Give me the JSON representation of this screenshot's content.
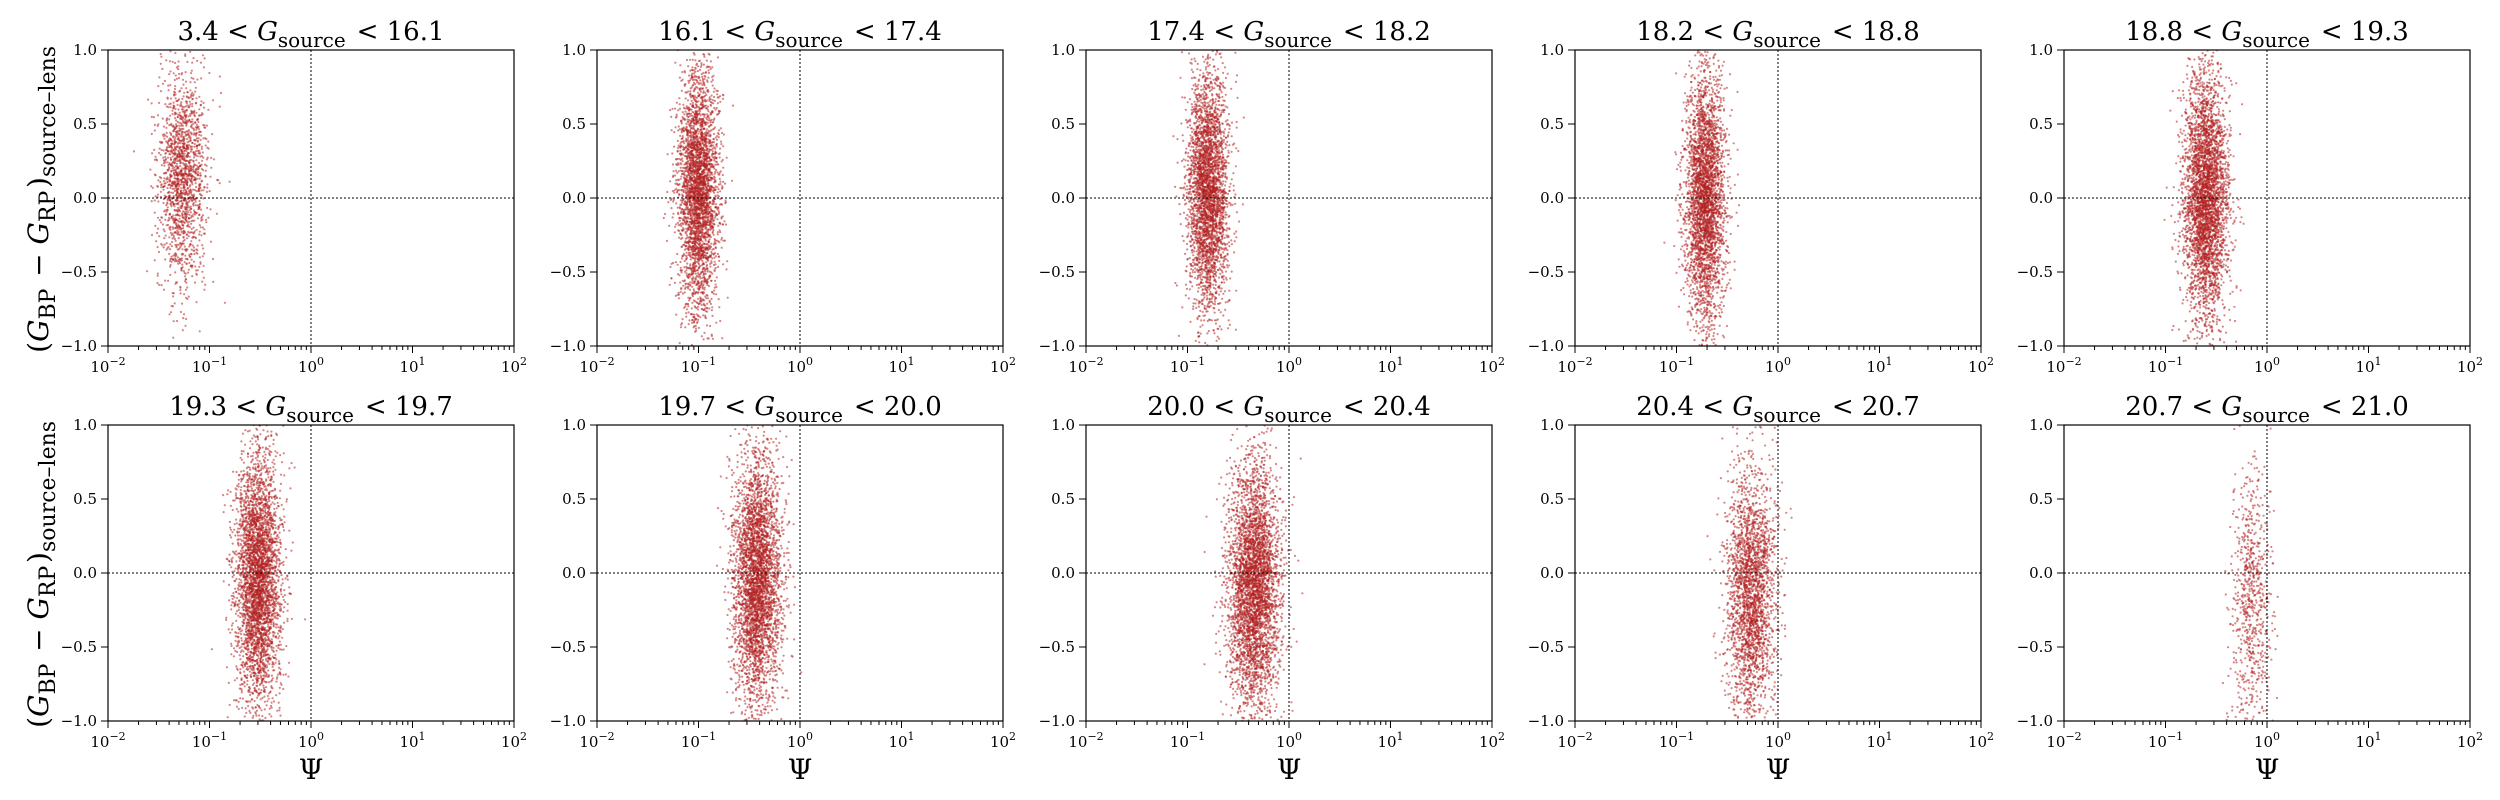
{
  "figure": {
    "ylabel": "(G_BP − G_RP)_source–lens",
    "xlabel": "Ψ"
  },
  "chart_data": [
    {
      "type": "scatter",
      "title": "3.4 < G_source < 16.1",
      "xlabel": "",
      "ylabel": "(G_BP − G_RP)_source–lens",
      "xscale": "log",
      "xlim": [
        0.01,
        100
      ],
      "ylim": [
        -1,
        1
      ],
      "xticks": [
        "10^-2",
        "10^-1",
        "10^0",
        "10^1",
        "10^2"
      ],
      "yticks": [
        "−1.0",
        "−0.5",
        "0.0",
        "0.5",
        "1.0"
      ],
      "reference_lines": {
        "x": 1,
        "y": 0
      },
      "marker_color": "#b22222",
      "series": [
        {
          "x_center": 0.055,
          "x_log_spread": 0.12,
          "y_center": 0.15,
          "y_spread": 0.35,
          "n_points": 1600
        }
      ]
    },
    {
      "type": "scatter",
      "title": "16.1 < G_source < 17.4",
      "xlabel": "",
      "ylabel": "",
      "xscale": "log",
      "xlim": [
        0.01,
        100
      ],
      "ylim": [
        -1,
        1
      ],
      "xticks": [
        "10^-2",
        "10^-1",
        "10^0",
        "10^1",
        "10^2"
      ],
      "yticks": [
        "−1.0",
        "−0.5",
        "0.0",
        "0.5",
        "1.0"
      ],
      "reference_lines": {
        "x": 1,
        "y": 0
      },
      "marker_color": "#b22222",
      "series": [
        {
          "x_center": 0.1,
          "x_log_spread": 0.1,
          "y_center": 0.05,
          "y_spread": 0.4,
          "n_points": 3200
        }
      ]
    },
    {
      "type": "scatter",
      "title": "17.4 < G_source < 18.2",
      "xlabel": "",
      "ylabel": "",
      "xscale": "log",
      "xlim": [
        0.01,
        100
      ],
      "ylim": [
        -1,
        1
      ],
      "xticks": [
        "10^-2",
        "10^-1",
        "10^0",
        "10^1",
        "10^2"
      ],
      "yticks": [
        "−1.0",
        "−0.5",
        "0.0",
        "0.5",
        "1.0"
      ],
      "reference_lines": {
        "x": 1,
        "y": 0
      },
      "marker_color": "#b22222",
      "series": [
        {
          "x_center": 0.16,
          "x_log_spread": 0.1,
          "y_center": 0.05,
          "y_spread": 0.4,
          "n_points": 3200
        }
      ]
    },
    {
      "type": "scatter",
      "title": "18.2 < G_source < 18.8",
      "xlabel": "",
      "ylabel": "",
      "xscale": "log",
      "xlim": [
        0.01,
        100
      ],
      "ylim": [
        -1,
        1
      ],
      "xticks": [
        "10^-2",
        "10^-1",
        "10^0",
        "10^1",
        "10^2"
      ],
      "yticks": [
        "−1.0",
        "−0.5",
        "0.0",
        "0.5",
        "1.0"
      ],
      "reference_lines": {
        "x": 1,
        "y": 0
      },
      "marker_color": "#b22222",
      "series": [
        {
          "x_center": 0.19,
          "x_log_spread": 0.1,
          "y_center": 0.0,
          "y_spread": 0.42,
          "n_points": 3200
        }
      ]
    },
    {
      "type": "scatter",
      "title": "18.8 < G_source < 19.3",
      "xlabel": "",
      "ylabel": "",
      "xscale": "log",
      "xlim": [
        0.01,
        100
      ],
      "ylim": [
        -1,
        1
      ],
      "xticks": [
        "10^-2",
        "10^-1",
        "10^0",
        "10^1",
        "10^2"
      ],
      "yticks": [
        "−1.0",
        "−0.5",
        "0.0",
        "0.5",
        "1.0"
      ],
      "reference_lines": {
        "x": 1,
        "y": 0
      },
      "marker_color": "#b22222",
      "series": [
        {
          "x_center": 0.25,
          "x_log_spread": 0.11,
          "y_center": 0.0,
          "y_spread": 0.42,
          "n_points": 3600
        }
      ]
    },
    {
      "type": "scatter",
      "title": "19.3 < G_source < 19.7",
      "xlabel": "Ψ",
      "ylabel": "(G_BP − G_RP)_source–lens",
      "xscale": "log",
      "xlim": [
        0.01,
        100
      ],
      "ylim": [
        -1,
        1
      ],
      "xticks": [
        "10^-2",
        "10^-1",
        "10^0",
        "10^1",
        "10^2"
      ],
      "yticks": [
        "−1.0",
        "−0.5",
        "0.0",
        "0.5",
        "1.0"
      ],
      "reference_lines": {
        "x": 1,
        "y": 0
      },
      "marker_color": "#b22222",
      "series": [
        {
          "x_center": 0.3,
          "x_log_spread": 0.11,
          "y_center": -0.05,
          "y_spread": 0.42,
          "n_points": 3600
        }
      ]
    },
    {
      "type": "scatter",
      "title": "19.7 < G_source < 20.0",
      "xlabel": "Ψ",
      "ylabel": "",
      "xscale": "log",
      "xlim": [
        0.01,
        100
      ],
      "ylim": [
        -1,
        1
      ],
      "xticks": [
        "10^-2",
        "10^-1",
        "10^0",
        "10^1",
        "10^2"
      ],
      "yticks": [
        "−1.0",
        "−0.5",
        "0.0",
        "0.5",
        "1.0"
      ],
      "reference_lines": {
        "x": 1,
        "y": 0
      },
      "marker_color": "#b22222",
      "series": [
        {
          "x_center": 0.38,
          "x_log_spread": 0.12,
          "y_center": -0.05,
          "y_spread": 0.42,
          "n_points": 3600
        }
      ]
    },
    {
      "type": "scatter",
      "title": "20.0 < G_source < 20.4",
      "xlabel": "Ψ",
      "ylabel": "",
      "xscale": "log",
      "xlim": [
        0.01,
        100
      ],
      "ylim": [
        -1,
        1
      ],
      "xticks": [
        "10^-2",
        "10^-1",
        "10^0",
        "10^1",
        "10^2"
      ],
      "yticks": [
        "−1.0",
        "−0.5",
        "0.0",
        "0.5",
        "1.0"
      ],
      "reference_lines": {
        "x": 1,
        "y": 0
      },
      "marker_color": "#b22222",
      "series": [
        {
          "x_center": 0.45,
          "x_log_spread": 0.13,
          "y_center": -0.1,
          "y_spread": 0.42,
          "n_points": 3800
        }
      ]
    },
    {
      "type": "scatter",
      "title": "20.4 < G_source < 20.7",
      "xlabel": "Ψ",
      "ylabel": "",
      "xscale": "log",
      "xlim": [
        0.01,
        100
      ],
      "ylim": [
        -1,
        1
      ],
      "xticks": [
        "10^-2",
        "10^-1",
        "10^0",
        "10^1",
        "10^2"
      ],
      "yticks": [
        "−1.0",
        "−0.5",
        "0.0",
        "0.5",
        "1.0"
      ],
      "reference_lines": {
        "x": 1,
        "y": 0
      },
      "marker_color": "#b22222",
      "series": [
        {
          "x_center": 0.55,
          "x_log_spread": 0.12,
          "y_center": -0.15,
          "y_spread": 0.42,
          "n_points": 2400
        }
      ]
    },
    {
      "type": "scatter",
      "title": "20.7 < G_source < 21.0",
      "xlabel": "Ψ",
      "ylabel": "",
      "xscale": "log",
      "xlim": [
        0.01,
        100
      ],
      "ylim": [
        -1,
        1
      ],
      "xticks": [
        "10^-2",
        "10^-1",
        "10^0",
        "10^1",
        "10^2"
      ],
      "yticks": [
        "−1.0",
        "−0.5",
        "0.0",
        "0.5",
        "1.0"
      ],
      "reference_lines": {
        "x": 1,
        "y": 0
      },
      "marker_color": "#b22222",
      "series": [
        {
          "x_center": 0.7,
          "x_log_spread": 0.1,
          "y_center": -0.2,
          "y_spread": 0.45,
          "n_points": 700
        }
      ]
    }
  ]
}
